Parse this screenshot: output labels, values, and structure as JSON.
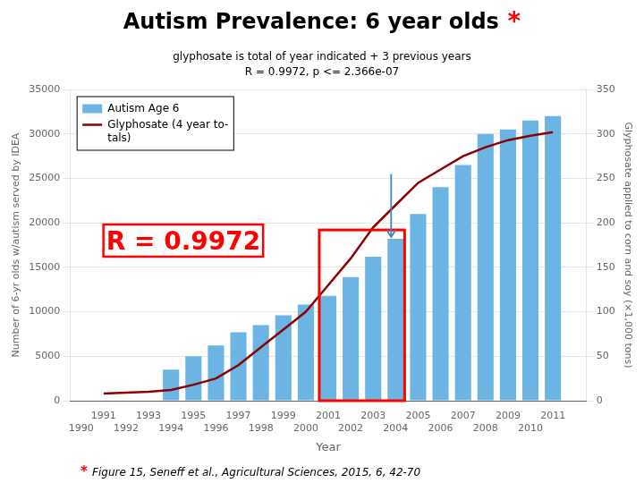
{
  "chart_data": {
    "type": "bar",
    "title": "Autism Prevalence: 6 year olds",
    "title_mark": "*",
    "subtitle": [
      "glyphosate is total of year indicated + 3 previous years",
      "R = 0.9972, p <= 2.366e-07"
    ],
    "footnote_mark": "*",
    "footnote": "Figure 15, Seneff et al., Agricultural Sciences, 2015, 6, 42-70",
    "mark_color": "red",
    "xlabel": "Year",
    "ylabel": "Number of 6-yr olds w/autism served by IDEA",
    "y2label": "Glyphosate applied to corn and soy (×1,000 tons)",
    "x": [
      1991,
      1992,
      1993,
      1994,
      1995,
      1996,
      1997,
      1998,
      1999,
      2000,
      2001,
      2002,
      2003,
      2004,
      2005,
      2006,
      2007,
      2008,
      2009,
      2010,
      2011
    ],
    "series": [
      {
        "name": "Autism Age 6",
        "color": "#6CB4E4",
        "type": "bar",
        "values": [
          null,
          null,
          null,
          3500,
          5000,
          6200,
          7700,
          8500,
          9600,
          10800,
          11800,
          13900,
          16200,
          18200,
          21000,
          24000,
          26500,
          30000,
          30500,
          31500,
          32000
        ]
      },
      {
        "name": "Glyphosate (4 year to-\ntals)",
        "color": "#8B0000",
        "type": "line",
        "axis": "y2",
        "values": [
          8,
          9,
          10,
          12,
          18,
          25,
          40,
          60,
          80,
          100,
          130,
          160,
          195,
          220,
          245,
          260,
          275,
          285,
          293,
          298,
          302
        ]
      }
    ],
    "xlim": [
      1989.5,
      2012.5
    ],
    "xticks": [
      1990,
      1991,
      1992,
      1993,
      1994,
      1995,
      1996,
      1997,
      1998,
      1999,
      2000,
      2001,
      2002,
      2003,
      2004,
      2005,
      2006,
      2007,
      2008,
      2009,
      2010,
      2011
    ],
    "ylim": [
      0,
      35000
    ],
    "yticks": [
      0,
      5000,
      10000,
      15000,
      20000,
      25000,
      30000,
      35000
    ],
    "y2lim": [
      0,
      350
    ],
    "y2ticks": [
      0,
      50,
      100,
      150,
      200,
      250,
      300,
      350
    ],
    "grid": true,
    "legend": "upper left",
    "annotations": [
      {
        "text": "R = 0.9972",
        "color": "red"
      },
      {
        "shape": "box",
        "x": [
          2000.6,
          2004.4
        ],
        "y": [
          0,
          19200
        ],
        "color": "red"
      },
      {
        "shape": "arrow",
        "x": 2003.8,
        "y": [
          25500,
          18400
        ],
        "color": "steelblue"
      }
    ]
  }
}
